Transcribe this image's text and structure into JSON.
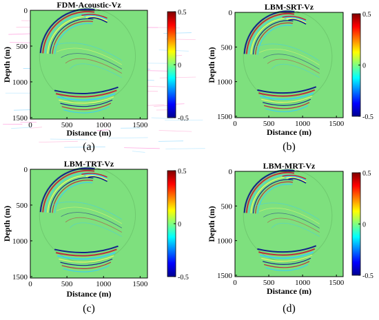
{
  "colormap": {
    "name": "jet",
    "stops": [
      "#00008f",
      "#0000ff",
      "#00ffff",
      "#ffff00",
      "#ff0000",
      "#800000"
    ],
    "field_color": "#7ee07e",
    "event_colors": {
      "positive": "#c8102e",
      "negative": "#00008b",
      "mid_light": "#ffff66",
      "mid_dark": "#33ccff"
    }
  },
  "chart_data": [
    {
      "type": "heatmap",
      "title": "FDM-Acoustic-Vz",
      "panel_label": "(a)",
      "xlabel": "Distance (m)",
      "ylabel": "Depth (m)",
      "xlim": [
        0,
        1600
      ],
      "ylim": [
        1520,
        0
      ],
      "xticks": [
        0,
        500,
        1000,
        1500
      ],
      "yticks": [
        0,
        500,
        1000,
        1500
      ],
      "colorbar": {
        "range": [
          -0.5,
          0.5
        ],
        "ticks": [
          0.5,
          0,
          -0.5
        ]
      },
      "noisy": true
    },
    {
      "type": "heatmap",
      "title": "LBM-SRT-Vz",
      "panel_label": "(b)",
      "xlabel": "Distance (m)",
      "ylabel": "Depth (m)",
      "xlim": [
        0,
        1600
      ],
      "ylim": [
        1520,
        0
      ],
      "xticks": [
        0,
        500,
        1000,
        1500
      ],
      "yticks": [
        0,
        500,
        1000,
        1500
      ],
      "colorbar": {
        "range": [
          -0.5,
          0.5
        ],
        "ticks": [
          0.5,
          0,
          -0.5
        ]
      },
      "noisy": false
    },
    {
      "type": "heatmap",
      "title": "LBM-TRT-Vz",
      "panel_label": "(c)",
      "xlabel": "Distance (m)",
      "ylabel": "Depth (m)",
      "xlim": [
        0,
        1600
      ],
      "ylim": [
        1520,
        0
      ],
      "xticks": [
        0,
        500,
        1000,
        1500
      ],
      "yticks": [
        0,
        500,
        1000,
        1500
      ],
      "colorbar": {
        "range": [
          -0.5,
          0.5
        ],
        "ticks": [
          0.5,
          0,
          -0.5
        ]
      },
      "noisy": false
    },
    {
      "type": "heatmap",
      "title": "LBM-MRT-Vz",
      "panel_label": "(d)",
      "xlabel": "Distance (m)",
      "ylabel": "Depth (m)",
      "xlim": [
        0,
        1600
      ],
      "ylim": [
        1520,
        0
      ],
      "xticks": [
        0,
        500,
        1000,
        1500
      ],
      "yticks": [
        0,
        500,
        1000,
        1500
      ],
      "colorbar": {
        "range": [
          -0.5,
          0.5
        ],
        "ticks": [
          0.5,
          0,
          -0.5
        ]
      },
      "noisy": false
    }
  ]
}
